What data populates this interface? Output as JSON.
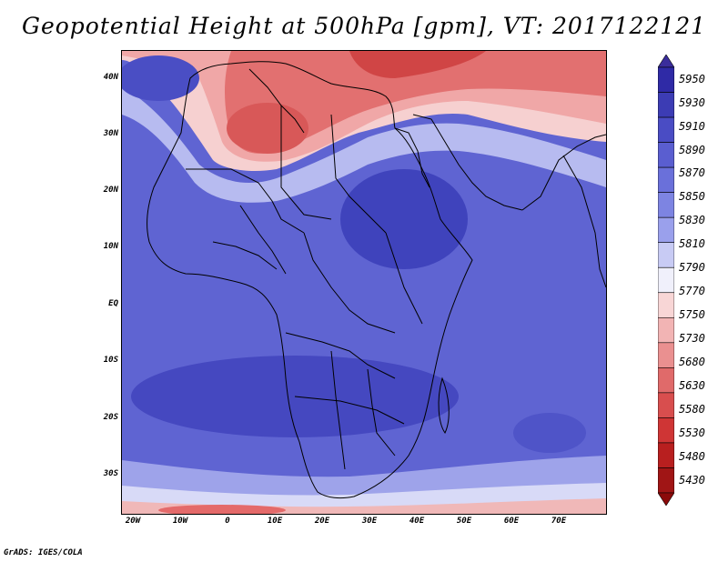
{
  "title": "Geopotential Height at 500hPa [gpm], VT: 2017122121",
  "footer": "GrADS: IGES/COLA",
  "y_axis_labels": [
    "40N",
    "30N",
    "20N",
    "10N",
    "EQ",
    "10S",
    "20S",
    "30S"
  ],
  "x_axis_labels": [
    "20W",
    "10W",
    "0",
    "10E",
    "20E",
    "30E",
    "40E",
    "50E",
    "60E",
    "70E"
  ],
  "colorbar": {
    "labels": [
      "5950",
      "5930",
      "5910",
      "5890",
      "5870",
      "5850",
      "5830",
      "5810",
      "5790",
      "5770",
      "5750",
      "5730",
      "5680",
      "5630",
      "5580",
      "5530",
      "5480",
      "5430"
    ],
    "colors": [
      "#3a2d9b",
      "#2f2aa6",
      "#3c3cb4",
      "#4a4cc4",
      "#5a5ed0",
      "#6a70da",
      "#7d84e2",
      "#9aa0ec",
      "#c8cbf4",
      "#f0f0fb",
      "#f8d6d6",
      "#f2b4b4",
      "#ea9090",
      "#e06a6a",
      "#d84e4e",
      "#cf3535",
      "#b81f1f",
      "#a01515",
      "#8b0a0a"
    ]
  },
  "palette": {
    "land_border": "#000000",
    "deep_blue": "#3338b0",
    "mid_blue": "#5b60cc",
    "light_blue": "#7b80de",
    "pale": "#eeeeff",
    "red": "#d84848"
  }
}
